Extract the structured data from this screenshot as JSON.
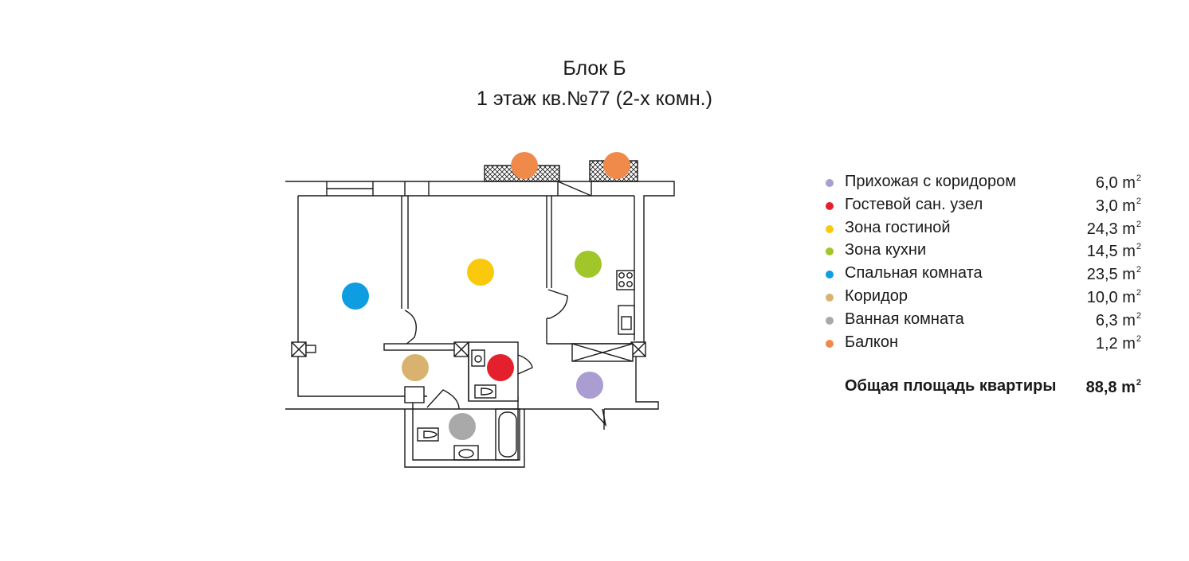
{
  "title": {
    "block": "Блок Б",
    "apartment": "1 этаж кв.№77 (2-х комн.)"
  },
  "unit": "m",
  "unit_power": "2",
  "rooms": [
    {
      "name": "Прихожая с коридором",
      "area": "6,0",
      "color": "#a99dd1"
    },
    {
      "name": "Гостевой сан. узел",
      "area": "3,0",
      "color": "#e3202b"
    },
    {
      "name": "Зона гостиной",
      "area": "24,3",
      "color": "#fbc90b"
    },
    {
      "name": "Зона кухни",
      "area": "14,5",
      "color": "#a1c62a"
    },
    {
      "name": "Спальная комната",
      "area": "23,5",
      "color": "#0d9de0"
    },
    {
      "name": "Коридор",
      "area": "10,0",
      "color": "#d8b26e"
    },
    {
      "name": "Ванная комната",
      "area": "6,3",
      "color": "#a9a9a9"
    },
    {
      "name": "Балкон",
      "area": "1,2",
      "color": "#f08a4b"
    }
  ],
  "total": {
    "label": "Общая площадь квартиры",
    "area": "88,8"
  }
}
